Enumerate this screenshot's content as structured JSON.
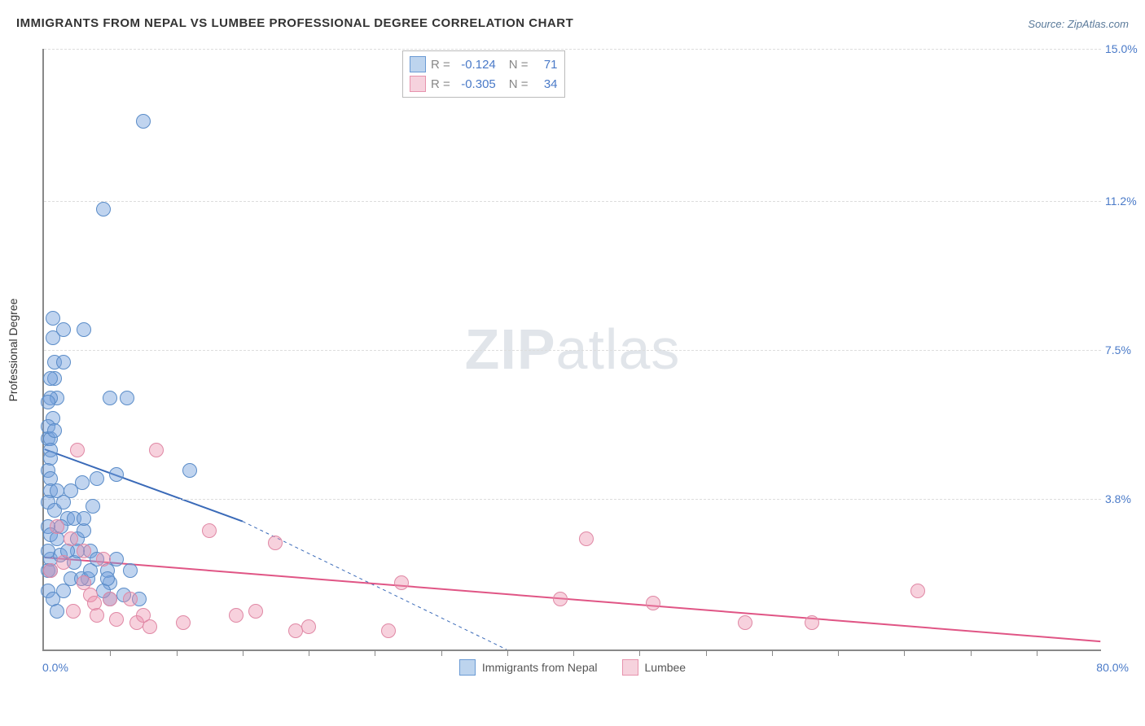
{
  "title": "IMMIGRANTS FROM NEPAL VS LUMBEE PROFESSIONAL DEGREE CORRELATION CHART",
  "source_label": "Source:",
  "source_name": "ZipAtlas.com",
  "watermark_zip": "ZIP",
  "watermark_atlas": "atlas",
  "y_axis_label": "Professional Degree",
  "chart": {
    "type": "scatter",
    "xlim": [
      0.0,
      80.0
    ],
    "ylim": [
      0.0,
      15.0
    ],
    "x_min_label": "0.0%",
    "x_max_label": "80.0%",
    "y_ticks": [
      3.8,
      7.5,
      11.2,
      15.0
    ],
    "y_tick_labels": [
      "3.8%",
      "7.5%",
      "11.2%",
      "15.0%"
    ],
    "x_tick_step": 5.0,
    "background_color": "#ffffff",
    "grid_color": "#dddddd",
    "axis_color": "#888888",
    "series": [
      {
        "name": "Immigrants from Nepal",
        "color_fill": "rgba(115,160,220,0.45)",
        "color_stroke": "#5a8cc8",
        "swatch_fill": "#bdd4ee",
        "swatch_border": "#6a9ad4",
        "r_label": "R =",
        "r_value": "-0.124",
        "n_label": "N =",
        "n_value": "71",
        "marker_radius": 9,
        "trend": {
          "x1": 0,
          "y1": 5.0,
          "x2_solid": 15,
          "y2_solid": 3.2,
          "x2_dash": 35,
          "y2_dash": 0,
          "color": "#3a6ab8",
          "width": 2
        },
        "points": [
          [
            0.3,
            5.3
          ],
          [
            0.5,
            5.3
          ],
          [
            0.5,
            5.0
          ],
          [
            0.5,
            4.8
          ],
          [
            0.7,
            5.8
          ],
          [
            0.3,
            5.6
          ],
          [
            0.8,
            5.5
          ],
          [
            1.0,
            6.3
          ],
          [
            0.5,
            6.3
          ],
          [
            0.8,
            6.8
          ],
          [
            0.5,
            6.8
          ],
          [
            0.3,
            6.2
          ],
          [
            0.8,
            7.2
          ],
          [
            1.5,
            7.2
          ],
          [
            0.7,
            7.8
          ],
          [
            0.3,
            4.5
          ],
          [
            0.5,
            4.3
          ],
          [
            0.5,
            4.0
          ],
          [
            1.0,
            4.0
          ],
          [
            0.3,
            3.7
          ],
          [
            0.8,
            3.5
          ],
          [
            1.5,
            3.7
          ],
          [
            1.8,
            3.3
          ],
          [
            2.3,
            3.3
          ],
          [
            1.3,
            3.1
          ],
          [
            0.3,
            3.1
          ],
          [
            0.5,
            2.9
          ],
          [
            1.0,
            2.8
          ],
          [
            2.5,
            2.8
          ],
          [
            3.0,
            3.0
          ],
          [
            3.5,
            2.5
          ],
          [
            4.0,
            2.3
          ],
          [
            4.8,
            2.0
          ],
          [
            5.5,
            2.3
          ],
          [
            6.5,
            2.0
          ],
          [
            3.3,
            1.8
          ],
          [
            2.0,
            1.8
          ],
          [
            2.8,
            1.8
          ],
          [
            1.5,
            1.5
          ],
          [
            5.0,
            1.3
          ],
          [
            6.0,
            1.4
          ],
          [
            7.2,
            1.3
          ],
          [
            5.0,
            1.7
          ],
          [
            4.5,
            1.5
          ],
          [
            0.3,
            1.5
          ],
          [
            0.7,
            1.3
          ],
          [
            1.0,
            1.0
          ],
          [
            0.5,
            2.3
          ],
          [
            1.2,
            2.4
          ],
          [
            0.3,
            2.5
          ],
          [
            2.3,
            2.2
          ],
          [
            2.5,
            2.5
          ],
          [
            3.5,
            2.0
          ],
          [
            4.8,
            1.8
          ],
          [
            2.9,
            4.2
          ],
          [
            4.0,
            4.3
          ],
          [
            5.0,
            6.3
          ],
          [
            6.3,
            6.3
          ],
          [
            3.0,
            8.0
          ],
          [
            1.5,
            8.0
          ],
          [
            0.7,
            8.3
          ],
          [
            11.0,
            4.5
          ],
          [
            7.5,
            13.2
          ],
          [
            4.5,
            11.0
          ],
          [
            0.3,
            2.0
          ],
          [
            0.5,
            2.0
          ],
          [
            1.8,
            2.5
          ],
          [
            3.0,
            3.3
          ],
          [
            2.0,
            4.0
          ],
          [
            5.5,
            4.4
          ],
          [
            3.7,
            3.6
          ]
        ]
      },
      {
        "name": "Lumbee",
        "color_fill": "rgba(235,140,170,0.40)",
        "color_stroke": "#e088a5",
        "swatch_fill": "#f6d2dd",
        "swatch_border": "#e793ad",
        "r_label": "R =",
        "r_value": "-0.305",
        "n_label": "N =",
        "n_value": "34",
        "marker_radius": 9,
        "trend": {
          "x1": 0,
          "y1": 2.3,
          "x2_solid": 80,
          "y2_solid": 0.2,
          "color": "#e05585",
          "width": 2
        },
        "points": [
          [
            1.0,
            3.1
          ],
          [
            2.0,
            2.8
          ],
          [
            3.0,
            2.5
          ],
          [
            4.5,
            2.3
          ],
          [
            2.5,
            5.0
          ],
          [
            8.5,
            5.0
          ],
          [
            1.5,
            2.2
          ],
          [
            0.5,
            2.0
          ],
          [
            3.0,
            1.7
          ],
          [
            3.5,
            1.4
          ],
          [
            5.0,
            1.3
          ],
          [
            6.5,
            1.3
          ],
          [
            4.0,
            0.9
          ],
          [
            5.5,
            0.8
          ],
          [
            7.0,
            0.7
          ],
          [
            8.0,
            0.6
          ],
          [
            12.5,
            3.0
          ],
          [
            16.0,
            1.0
          ],
          [
            17.5,
            2.7
          ],
          [
            14.5,
            0.9
          ],
          [
            19.0,
            0.5
          ],
          [
            20.0,
            0.6
          ],
          [
            26.0,
            0.5
          ],
          [
            27.0,
            1.7
          ],
          [
            41.0,
            2.8
          ],
          [
            39.0,
            1.3
          ],
          [
            46.0,
            1.2
          ],
          [
            53.0,
            0.7
          ],
          [
            58.0,
            0.7
          ],
          [
            66.0,
            1.5
          ],
          [
            2.2,
            1.0
          ],
          [
            3.8,
            1.2
          ],
          [
            7.5,
            0.9
          ],
          [
            10.5,
            0.7
          ]
        ]
      }
    ]
  },
  "legend": {
    "series1_label": "Immigrants from Nepal",
    "series2_label": "Lumbee"
  }
}
